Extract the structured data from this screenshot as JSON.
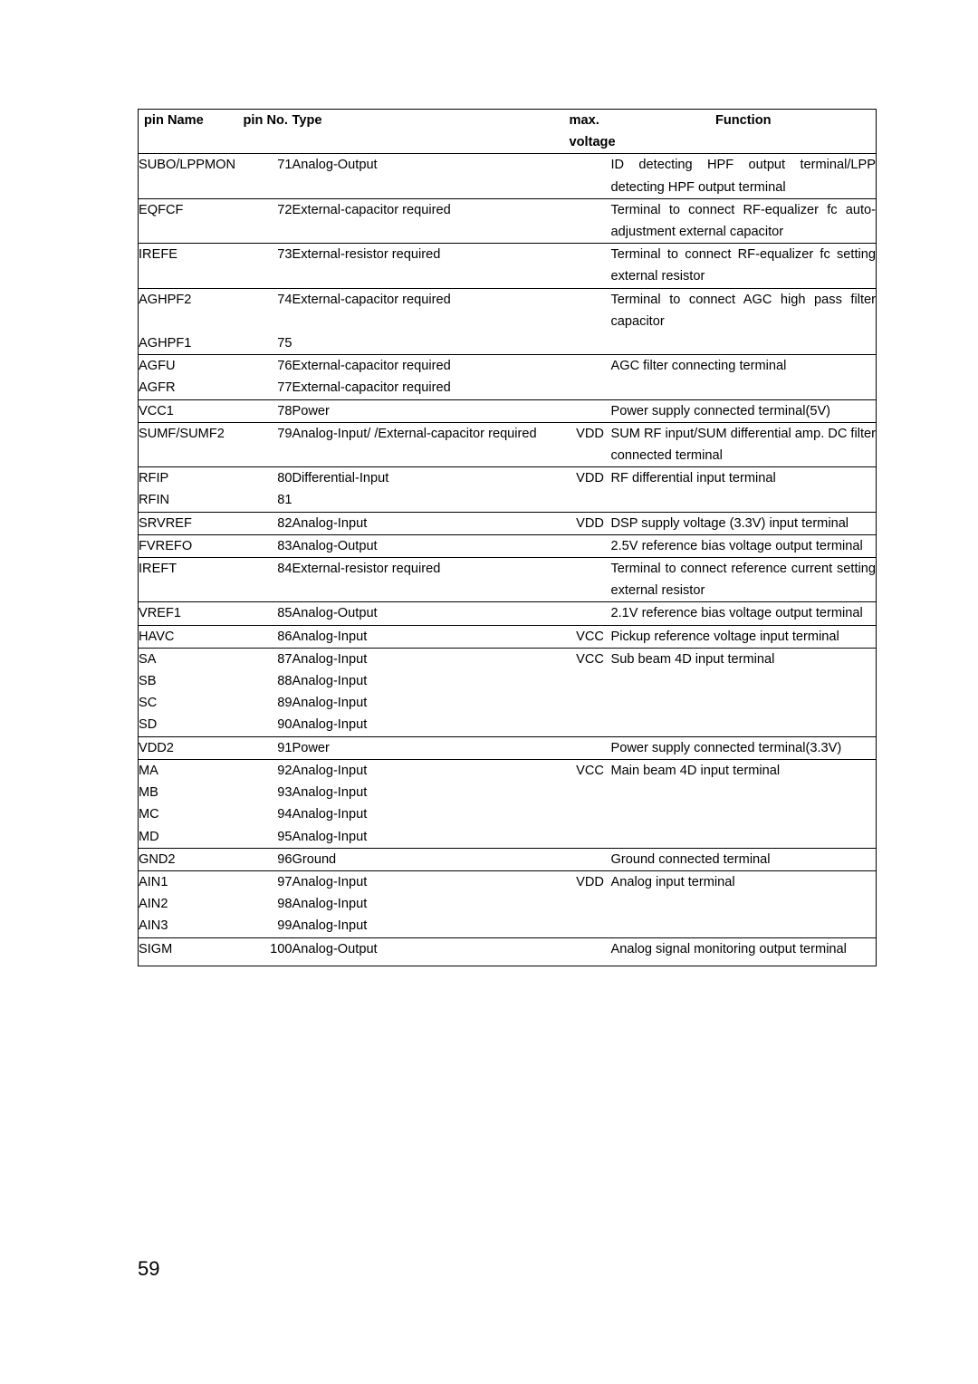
{
  "headers": {
    "name": "pin Name",
    "no": "pin No.",
    "type": "Type",
    "mv": "max. voltage",
    "fn": "Function"
  },
  "groups": [
    {
      "rows": [
        {
          "name": "SUBO/LPPMON",
          "no": "71",
          "type": "Analog-Output",
          "mv": "",
          "fn": "ID detecting HPF output terminal/LPP detecting HPF output terminal"
        }
      ]
    },
    {
      "rows": [
        {
          "name": "EQFCF",
          "no": "72",
          "type": "External-capacitor required",
          "mv": "",
          "fn": "Terminal to connect RF-equalizer fc auto-adjustment external capacitor"
        }
      ]
    },
    {
      "rows": [
        {
          "name": "IREFE",
          "no": "73",
          "type": "External-resistor required",
          "mv": "",
          "fn": "Terminal to connect RF-equalizer fc setting external resistor"
        }
      ]
    },
    {
      "rows": [
        {
          "name": "AGHPF2",
          "no": "74",
          "type": "External-capacitor required",
          "mv": "",
          "fn": "Terminal to connect AGC high pass filter capacitor"
        },
        {
          "name": "AGHPF1",
          "no": "75",
          "type": "",
          "mv": "",
          "fn": ""
        }
      ]
    },
    {
      "rows": [
        {
          "name": "AGFU",
          "no": "76",
          "type": "External-capacitor required",
          "mv": "",
          "fn": "AGC filter connecting terminal"
        },
        {
          "name": "AGFR",
          "no": "77",
          "type": "External-capacitor required",
          "mv": "",
          "fn": ""
        }
      ]
    },
    {
      "rows": [
        {
          "name": "VCC1",
          "no": "78",
          "type": "Power",
          "mv": "",
          "fn": "Power supply connected terminal(5V)"
        }
      ]
    },
    {
      "rows": [
        {
          "name": "SUMF/SUMF2",
          "no": "79",
          "type": "Analog-Input/ /External-capacitor required",
          "mv": "VDD",
          "fn": "SUM RF input/SUM differential amp. DC filter connected terminal"
        }
      ]
    },
    {
      "rows": [
        {
          "name": "RFIP",
          "no": "80",
          "type": "Differential-Input",
          "mv": "VDD",
          "fn": "RF differential input terminal"
        },
        {
          "name": "RFIN",
          "no": "81",
          "type": "",
          "mv": "",
          "fn": ""
        }
      ]
    },
    {
      "rows": [
        {
          "name": "SRVREF",
          "no": "82",
          "type": "Analog-Input",
          "mv": "VDD",
          "fn": "DSP supply voltage (3.3V) input terminal"
        }
      ]
    },
    {
      "rows": [
        {
          "name": "FVREFO",
          "no": "83",
          "type": "Analog-Output",
          "mv": "",
          "fn": "2.5V reference bias voltage output terminal"
        }
      ]
    },
    {
      "rows": [
        {
          "name": "IREFT",
          "no": "84",
          "type": "External-resistor required",
          "mv": "",
          "fn": "Terminal to connect reference current setting external resistor"
        }
      ]
    },
    {
      "rows": [
        {
          "name": "VREF1",
          "no": "85",
          "type": "Analog-Output",
          "mv": "",
          "fn": "2.1V reference bias voltage output terminal"
        }
      ]
    },
    {
      "rows": [
        {
          "name": "HAVC",
          "no": "86",
          "type": "Analog-Input",
          "mv": "VCC",
          "fn": "Pickup reference voltage input terminal"
        }
      ]
    },
    {
      "rows": [
        {
          "name": "SA",
          "no": "87",
          "type": "Analog-Input",
          "mv": "VCC",
          "fn": "Sub beam 4D input terminal"
        },
        {
          "name": "SB",
          "no": "88",
          "type": "Analog-Input",
          "mv": "",
          "fn": ""
        },
        {
          "name": "SC",
          "no": "89",
          "type": "Analog-Input",
          "mv": "",
          "fn": ""
        },
        {
          "name": "SD",
          "no": "90",
          "type": "Analog-Input",
          "mv": "",
          "fn": ""
        }
      ]
    },
    {
      "rows": [
        {
          "name": "VDD2",
          "no": "91",
          "type": "Power",
          "mv": "",
          "fn": "Power supply connected terminal(3.3V)"
        }
      ]
    },
    {
      "rows": [
        {
          "name": "MA",
          "no": "92",
          "type": "Analog-Input",
          "mv": "VCC",
          "fn": "Main beam 4D input terminal"
        },
        {
          "name": "MB",
          "no": "93",
          "type": "Analog-Input",
          "mv": "",
          "fn": ""
        },
        {
          "name": "MC",
          "no": "94",
          "type": "Analog-Input",
          "mv": "",
          "fn": ""
        },
        {
          "name": "MD",
          "no": "95",
          "type": "Analog-Input",
          "mv": "",
          "fn": ""
        }
      ]
    },
    {
      "rows": [
        {
          "name": "GND2",
          "no": "96",
          "type": "Ground",
          "mv": "",
          "fn": "Ground connected terminal"
        }
      ]
    },
    {
      "rows": [
        {
          "name": "AIN1",
          "no": "97",
          "type": "Analog-Input",
          "mv": "VDD",
          "fn": "Analog input terminal"
        },
        {
          "name": "AIN2",
          "no": "98",
          "type": "Analog-Input",
          "mv": "",
          "fn": ""
        },
        {
          "name": "AIN3",
          "no": "99",
          "type": "Analog-Input",
          "mv": "",
          "fn": ""
        }
      ]
    },
    {
      "rows": [
        {
          "name": "SIGM",
          "no": "100",
          "type": "Analog-Output",
          "mv": "",
          "fn": "Analog signal monitoring output terminal"
        }
      ],
      "last": true
    }
  ],
  "page": "59"
}
